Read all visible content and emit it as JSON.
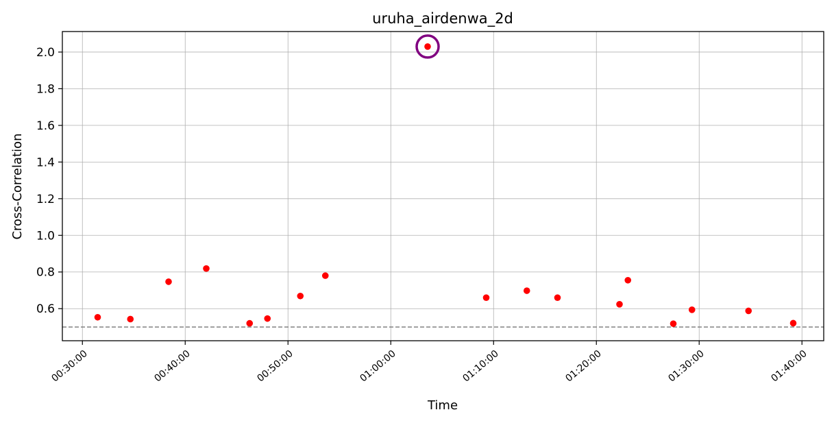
{
  "chart_data": {
    "type": "scatter",
    "title": "uruha_airdenwa_2d",
    "xlabel": "Time",
    "ylabel": "Cross-Correlation",
    "xlim": [
      "00:28:03",
      "01:42:07"
    ],
    "ylim": [
      0.425,
      2.112
    ],
    "x_ticks": [
      "00:30:00",
      "00:40:00",
      "00:50:00",
      "01:00:00",
      "01:10:00",
      "01:20:00",
      "01:30:00",
      "01:40:00"
    ],
    "y_ticks": [
      0.6,
      0.8,
      1.0,
      1.2,
      1.4,
      1.6,
      1.8,
      2.0
    ],
    "y_tick_labels": [
      "0.6",
      "0.8",
      "1.0",
      "1.2",
      "1.4",
      "1.6",
      "1.8",
      "2.0"
    ],
    "grid": true,
    "threshold": 0.5,
    "points": [
      {
        "x": "00:31:29",
        "y": 0.553
      },
      {
        "x": "00:34:40",
        "y": 0.543
      },
      {
        "x": "00:38:23",
        "y": 0.747
      },
      {
        "x": "00:42:03",
        "y": 0.819
      },
      {
        "x": "00:46:16",
        "y": 0.52
      },
      {
        "x": "00:48:00",
        "y": 0.546
      },
      {
        "x": "00:51:12",
        "y": 0.669
      },
      {
        "x": "00:53:38",
        "y": 0.78
      },
      {
        "x": "01:03:35",
        "y": 2.03
      },
      {
        "x": "01:09:17",
        "y": 0.66
      },
      {
        "x": "01:13:14",
        "y": 0.698
      },
      {
        "x": "01:16:13",
        "y": 0.66
      },
      {
        "x": "01:22:15",
        "y": 0.624
      },
      {
        "x": "01:23:04",
        "y": 0.755
      },
      {
        "x": "01:27:29",
        "y": 0.518
      },
      {
        "x": "01:29:18",
        "y": 0.594
      },
      {
        "x": "01:34:48",
        "y": 0.588
      },
      {
        "x": "01:39:09",
        "y": 0.521
      }
    ],
    "highlight": {
      "x": "01:03:35",
      "y": 2.03
    },
    "colors": {
      "points": "#ff0000",
      "highlight": "#800080",
      "threshold": "#808080",
      "grid": "#b0b0b0"
    }
  }
}
